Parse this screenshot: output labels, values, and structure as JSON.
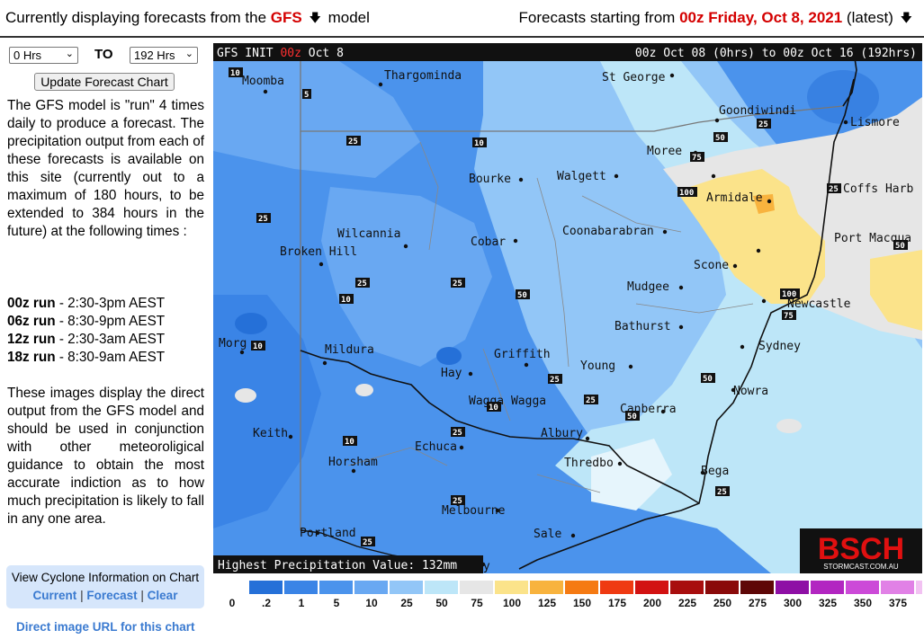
{
  "header": {
    "left_prefix": "Currently displaying forecasts from the",
    "model": "GFS",
    "left_suffix": "model",
    "right_prefix": "Forecasts starting from",
    "start": "00z Friday, Oct 8, 2021",
    "right_suffix": "(latest)",
    "arrow_icon": "down-arrow-icon"
  },
  "controls": {
    "from_value": "0 Hrs",
    "to_label": "TO",
    "to_value": "192 Hrs",
    "update_label": "Update Forecast Chart"
  },
  "description": "The GFS model is \"run\" 4 times daily to produce a forecast. The precipitation output from each of these forecasts is available on this site (currently out to a maximum of 180 hours, to be extended to 384 hours in the future) at the following times :",
  "runs": [
    {
      "name": "00z run",
      "time": "- 2:30-3pm AEST"
    },
    {
      "name": "06z run",
      "time": "- 8:30-9pm AEST"
    },
    {
      "name": "12z run",
      "time": "- 2:30-3am AEST"
    },
    {
      "name": "18z run",
      "time": "- 8:30-9am AEST"
    }
  ],
  "description2": "These images display the direct output from the GFS model and should be used in conjunction with other meteoroligical guidance to obtain the most accurate indiction as to how much precipitation is likely to fall in any one area.",
  "cyclone": {
    "title": "View Cyclone Information on Chart",
    "current": "Current",
    "forecast": "Forecast",
    "clear": "Clear",
    "sep": "|"
  },
  "direct_link": "Direct image URL for this chart",
  "map": {
    "init_prefix": "GFS INIT",
    "init_run": "00z",
    "init_date": "Oct 8",
    "range": "00z Oct 08 (0hrs) to 00z Oct 16 (192hrs)",
    "highest": "Highest Precipitation Value: 132mm",
    "logo_text": "BSCH",
    "logo_sub": "STORMCAST.COM.AU",
    "places": [
      "Moomba",
      "Thargominda",
      "St George",
      "Goondiwindi",
      "Lismore",
      "Moree",
      "Coffs Harb",
      "Armidale",
      "Walgett",
      "Bourke",
      "Coonabarabran",
      "Port Macqua",
      "Wilcannia",
      "Cobar",
      "Broken Hill",
      "Scone",
      "Newcastle",
      "Mudgee",
      "Bathurst",
      "Sydney",
      "Morg",
      "Mildura",
      "Griffith",
      "Hay",
      "Young",
      "Nowra",
      "Wagga Wagga",
      "Canberra",
      "Keith",
      "Echuca",
      "Albury",
      "Horsham",
      "Thredbo",
      "Bega",
      "Melbourne",
      "Portland",
      "Sale",
      "ay"
    ],
    "contours": [
      "10",
      "5",
      "25",
      "10",
      "25",
      "50",
      "25",
      "100",
      "75",
      "25",
      "50",
      "75",
      "100",
      "25",
      "10",
      "25",
      "50",
      "10",
      "75",
      "50",
      "25",
      "25",
      "10",
      "50",
      "10",
      "25",
      "25",
      "25",
      "25"
    ]
  },
  "legend": {
    "values": [
      "0",
      ".2",
      "1",
      "5",
      "10",
      "25",
      "50",
      "75",
      "100",
      "125",
      "150",
      "175",
      "200",
      "225",
      "250",
      "275",
      "300",
      "325",
      "350",
      "375"
    ],
    "colors": [
      "#2570d8",
      "#3a84e6",
      "#4b93ec",
      "#69a8f2",
      "#92c6f7",
      "#bde6f8",
      "#e6e6e6",
      "#fbe38a",
      "#f8b33e",
      "#f57a13",
      "#ef3a12",
      "#d21212",
      "#a80e0e",
      "#8a0a0a",
      "#5e0707",
      "#8e0fa5",
      "#b226c1",
      "#cc4ad8",
      "#e181e6",
      "#f2c2f2"
    ]
  }
}
